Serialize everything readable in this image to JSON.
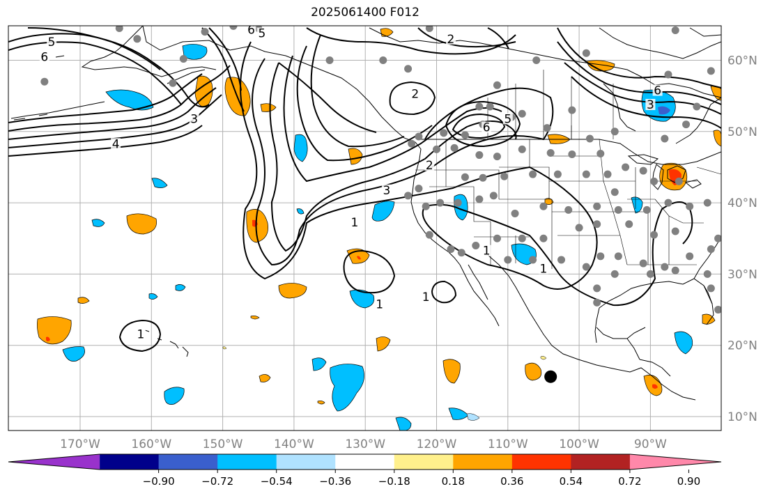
{
  "title": "2025061400 F012",
  "map": {
    "projection": "plate-carree",
    "lon_range": [
      -180,
      -80
    ],
    "lat_range": [
      8,
      65
    ],
    "lon_ticks": [
      {
        "value": -170,
        "label": "170°W"
      },
      {
        "value": -160,
        "label": "160°W"
      },
      {
        "value": -150,
        "label": "150°W"
      },
      {
        "value": -140,
        "label": "140°W"
      },
      {
        "value": -130,
        "label": "130°W"
      },
      {
        "value": -120,
        "label": "120°W"
      },
      {
        "value": -110,
        "label": "110°W"
      },
      {
        "value": -100,
        "label": "100°W"
      },
      {
        "value": -90,
        "label": "90°W"
      }
    ],
    "lat_ticks": [
      {
        "value": 10,
        "label": "10°N"
      },
      {
        "value": 20,
        "label": "20°N"
      },
      {
        "value": 30,
        "label": "30°N"
      },
      {
        "value": 40,
        "label": "40°N"
      },
      {
        "value": 50,
        "label": "50°N"
      },
      {
        "value": 60,
        "label": "60°N"
      }
    ],
    "grid": true,
    "colors": {
      "land_outline": "#000000",
      "grid": "#b0b0b0",
      "contour": "#000000",
      "station": "#808080"
    }
  },
  "colorbar": {
    "ticks": [
      "−0.90",
      "−0.72",
      "−0.54",
      "−0.36",
      "−0.18",
      "0.18",
      "0.36",
      "0.54",
      "0.72",
      "0.90"
    ],
    "colors": [
      "#9932cc",
      "#00008b",
      "#3a5fcd",
      "#00bfff",
      "#b0e2ff",
      "#ffffff",
      "#fff08c",
      "#ffa500",
      "#ff3300",
      "#b22222",
      "#ff88aa"
    ],
    "extend": "both"
  },
  "contours": [
    {
      "label": "1",
      "value": 1
    },
    {
      "label": "2",
      "value": 2
    },
    {
      "label": "3",
      "value": 3
    },
    {
      "label": "4",
      "value": 4
    },
    {
      "label": "5",
      "value": 5
    },
    {
      "label": "6",
      "value": 6
    }
  ],
  "contour_labels": [
    {
      "text": "6",
      "lon": -175,
      "lat": 60.2
    },
    {
      "text": "5",
      "lon": -174,
      "lat": 62.3
    },
    {
      "text": "3",
      "lon": -154,
      "lat": 51.5
    },
    {
      "text": "4",
      "lon": -165,
      "lat": 48.0
    },
    {
      "text": "6",
      "lon": -146,
      "lat": 64.0
    },
    {
      "text": "5",
      "lon": -144.5,
      "lat": 63.5
    },
    {
      "text": "2",
      "lon": -123,
      "lat": 55.0
    },
    {
      "text": "2",
      "lon": -118,
      "lat": 62.7
    },
    {
      "text": "6",
      "lon": -113,
      "lat": 50.3
    },
    {
      "text": "5",
      "lon": -110,
      "lat": 51.5
    },
    {
      "text": "2",
      "lon": -121,
      "lat": 45.0
    },
    {
      "text": "3",
      "lon": -127,
      "lat": 41.5
    },
    {
      "text": "1",
      "lon": -131.5,
      "lat": 37.0
    },
    {
      "text": "1",
      "lon": -128,
      "lat": 25.5
    },
    {
      "text": "1",
      "lon": -121.5,
      "lat": 26.5
    },
    {
      "text": "1",
      "lon": -161.5,
      "lat": 21.3
    },
    {
      "text": "6",
      "lon": -89,
      "lat": 55.5
    },
    {
      "text": "3",
      "lon": -90,
      "lat": 53.5
    },
    {
      "text": "1",
      "lon": -113,
      "lat": 33.0
    },
    {
      "text": "1",
      "lon": -105,
      "lat": 30.5
    }
  ],
  "stations": [
    [
      -175.0,
      57.0
    ],
    [
      -164.5,
      64.5
    ],
    [
      -162.0,
      63.0
    ],
    [
      -155.5,
      60.2
    ],
    [
      -157.0,
      56.8
    ],
    [
      -152.5,
      64.0
    ],
    [
      -148.5,
      64.8
    ],
    [
      -145.0,
      64.5
    ],
    [
      -135.0,
      60.0
    ],
    [
      -133.0,
      65.0
    ],
    [
      -129.0,
      65.0
    ],
    [
      -124.5,
      65.0
    ],
    [
      -121.0,
      64.5
    ],
    [
      -127.5,
      60.0
    ],
    [
      -124.0,
      58.8
    ],
    [
      -106.0,
      60.0
    ],
    [
      -99.0,
      61.0
    ],
    [
      -86.5,
      64.2
    ],
    [
      -75.0,
      64.5
    ],
    [
      -81.5,
      58.5
    ],
    [
      -87.5,
      58.0
    ],
    [
      -90.0,
      53.5
    ],
    [
      -83.5,
      53.5
    ],
    [
      -85.0,
      51.0
    ],
    [
      -79.5,
      51.0
    ],
    [
      -75.5,
      50.0
    ],
    [
      -80.0,
      48.0
    ],
    [
      -88.0,
      49.0
    ],
    [
      -95.0,
      50.0
    ],
    [
      -98.5,
      49.0
    ],
    [
      -101.0,
      53.0
    ],
    [
      -104.5,
      50.5
    ],
    [
      -108.0,
      52.5
    ],
    [
      -109.5,
      52.0
    ],
    [
      -112.5,
      53.5
    ],
    [
      -114.0,
      53.5
    ],
    [
      -111.5,
      56.5
    ],
    [
      -113.5,
      51.0
    ],
    [
      -116.0,
      49.5
    ],
    [
      -119.0,
      49.8
    ],
    [
      -122.5,
      49.3
    ],
    [
      -123.5,
      48.3
    ],
    [
      -120.0,
      47.5
    ],
    [
      -117.5,
      47.7
    ],
    [
      -114.0,
      46.7
    ],
    [
      -111.5,
      46.5
    ],
    [
      -108.0,
      47.5
    ],
    [
      -104.0,
      47.0
    ],
    [
      -101.0,
      46.8
    ],
    [
      -97.0,
      46.9
    ],
    [
      -93.5,
      45.0
    ],
    [
      -96.0,
      44.0
    ],
    [
      -99.0,
      44.0
    ],
    [
      -103.0,
      44.0
    ],
    [
      -106.5,
      44.0
    ],
    [
      -110.5,
      43.7
    ],
    [
      -113.5,
      43.5
    ],
    [
      -116.0,
      43.6
    ],
    [
      -122.5,
      42.0
    ],
    [
      -124.0,
      41.0
    ],
    [
      -121.5,
      39.5
    ],
    [
      -119.5,
      40.0
    ],
    [
      -117.0,
      40.0
    ],
    [
      -114.0,
      40.5
    ],
    [
      -112.0,
      41.0
    ],
    [
      -109.0,
      38.5
    ],
    [
      -105.0,
      39.5
    ],
    [
      -101.5,
      39.0
    ],
    [
      -97.5,
      39.5
    ],
    [
      -94.5,
      39.0
    ],
    [
      -90.5,
      39.0
    ],
    [
      -87.5,
      40.0
    ],
    [
      -84.5,
      39.5
    ],
    [
      -82.0,
      40.0
    ],
    [
      -86.0,
      43.0
    ],
    [
      -89.5,
      43.0
    ],
    [
      -91.0,
      44.5
    ],
    [
      -95.0,
      41.5
    ],
    [
      -93.0,
      37.0
    ],
    [
      -97.5,
      37.0
    ],
    [
      -100.0,
      36.5
    ],
    [
      -105.0,
      35.0
    ],
    [
      -108.0,
      35.0
    ],
    [
      -111.5,
      35.0
    ],
    [
      -114.5,
      34.0
    ],
    [
      -116.5,
      33.0
    ],
    [
      -118.0,
      33.5
    ],
    [
      -121.0,
      35.5
    ],
    [
      -110.0,
      32.0
    ],
    [
      -106.5,
      32.0
    ],
    [
      -102.5,
      32.0
    ],
    [
      -99.0,
      31.0
    ],
    [
      -97.0,
      32.5
    ],
    [
      -94.5,
      32.5
    ],
    [
      -91.0,
      31.5
    ],
    [
      -88.0,
      31.0
    ],
    [
      -84.5,
      32.5
    ],
    [
      -81.5,
      33.5
    ],
    [
      -80.5,
      35.0
    ],
    [
      -86.5,
      36.0
    ],
    [
      -89.5,
      35.5
    ],
    [
      -90.0,
      30.0
    ],
    [
      -86.5,
      30.5
    ],
    [
      -82.0,
      30.0
    ],
    [
      -81.5,
      28.0
    ],
    [
      -80.5,
      25.0
    ],
    [
      -80.0,
      26.5
    ],
    [
      -95.0,
      30.0
    ],
    [
      -97.5,
      28.0
    ],
    [
      -97.5,
      26.0
    ],
    [
      -80.0,
      19.0
    ],
    [
      -80.0,
      37.0
    ],
    [
      -80.0,
      43.0
    ],
    [
      -80.0,
      47.0
    ]
  ],
  "marker": {
    "lon": -104.0,
    "lat": 15.6,
    "color": "#000000"
  }
}
